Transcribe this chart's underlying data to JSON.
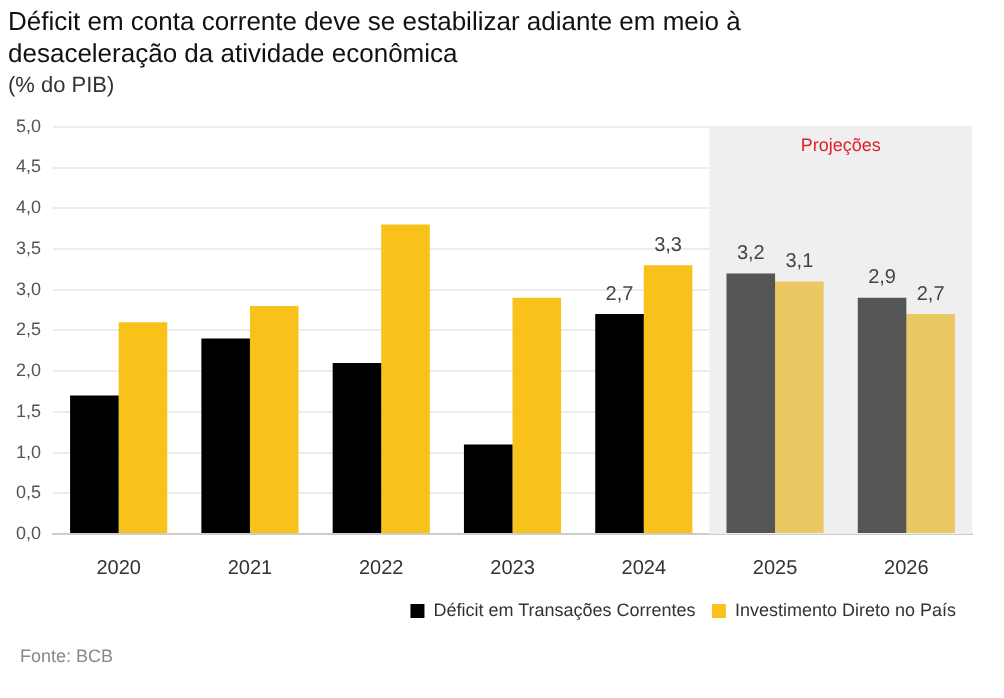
{
  "chart_data": {
    "type": "bar",
    "title": "Déficit em conta corrente deve se estabilizar adiante em meio à desaceleração da atividade econômica",
    "subtitle": "(% do PIB)",
    "categories": [
      "2020",
      "2021",
      "2022",
      "2023",
      "2024",
      "2025",
      "2026"
    ],
    "series": [
      {
        "name": "Déficit em Transações Correntes",
        "color": "#000000",
        "colors": [
          "#000000",
          "#000000",
          "#000000",
          "#000000",
          "#000000",
          "#555555",
          "#555555"
        ],
        "values": [
          1.7,
          2.4,
          2.1,
          1.1,
          2.7,
          3.2,
          2.9
        ],
        "value_labels": [
          null,
          null,
          null,
          null,
          "2,7",
          "3,2",
          "2,9"
        ]
      },
      {
        "name": "Investimento Direto no País",
        "color": "#f8c21a",
        "colors": [
          "#f8c21a",
          "#f8c21a",
          "#f8c21a",
          "#f8c21a",
          "#f8c21a",
          "#ebc962",
          "#ebc962"
        ],
        "values": [
          2.6,
          2.8,
          3.8,
          2.9,
          3.3,
          3.1,
          2.7
        ],
        "value_labels": [
          null,
          null,
          null,
          null,
          "3,3",
          "3,1",
          "2,7"
        ]
      }
    ],
    "ylim": [
      0,
      5
    ],
    "yticks": [
      {
        "value": 0,
        "label": "0,0"
      },
      {
        "value": 0.5,
        "label": "0,5"
      },
      {
        "value": 1,
        "label": "1,0"
      },
      {
        "value": 1.5,
        "label": "1,5"
      },
      {
        "value": 2,
        "label": "2,0"
      },
      {
        "value": 2.5,
        "label": "2,5"
      },
      {
        "value": 3,
        "label": "3,0"
      },
      {
        "value": 3.5,
        "label": "3,5"
      },
      {
        "value": 4,
        "label": "4,0"
      },
      {
        "value": 4.5,
        "label": "4,5"
      },
      {
        "value": 5,
        "label": "5,0"
      }
    ],
    "bands": [
      {
        "axis": "x",
        "from": "2025",
        "to": "2026",
        "label": "Projeções",
        "color": "#efefef"
      }
    ],
    "grid": "y",
    "legend": "bottom right",
    "annotations": [
      "Fonte: BCB"
    ]
  }
}
